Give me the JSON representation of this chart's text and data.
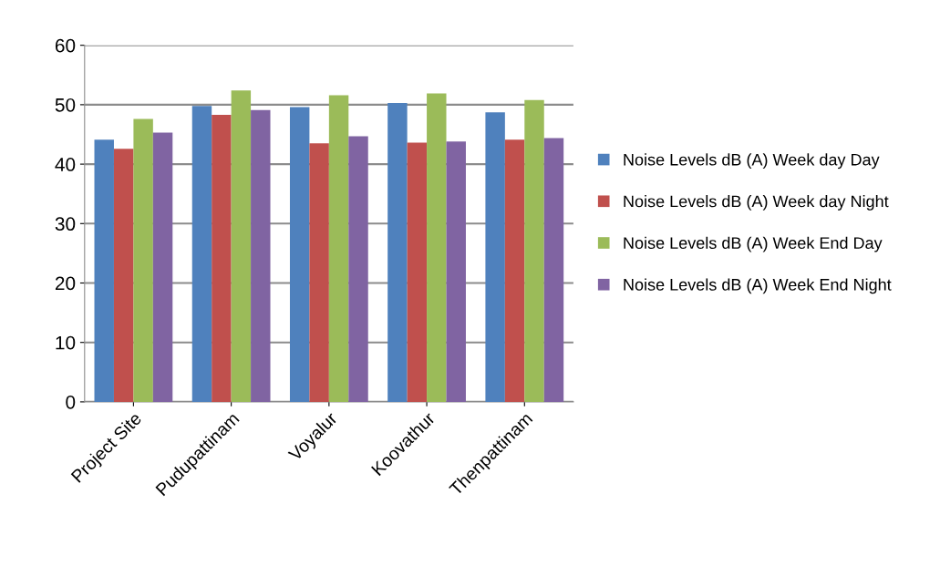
{
  "chart_data": {
    "type": "bar",
    "categories": [
      "Project Site",
      "Pudupattinam",
      "Voyalur",
      "Koovathur",
      "Thenpattinam"
    ],
    "series": [
      {
        "name": "Noise Levels dB (A) Week day Day",
        "color": "#4f81bd",
        "values": [
          44.1,
          49.8,
          49.6,
          50.3,
          48.7
        ]
      },
      {
        "name": "Noise Levels dB (A) Week day Night",
        "color": "#c0504d",
        "values": [
          42.6,
          48.3,
          43.5,
          43.6,
          44.1
        ]
      },
      {
        "name": "Noise Levels dB (A) Week End Day",
        "color": "#9bbb59",
        "values": [
          47.6,
          52.4,
          51.6,
          51.9,
          50.8
        ]
      },
      {
        "name": "Noise Levels dB (A) Week End Night",
        "color": "#8064a2",
        "values": [
          45.3,
          49.1,
          44.7,
          43.8,
          44.4
        ]
      }
    ],
    "ylim": [
      0,
      60
    ],
    "yticks": [
      0,
      10,
      20,
      30,
      40,
      50,
      60
    ],
    "grid": "y",
    "legend": "right"
  }
}
